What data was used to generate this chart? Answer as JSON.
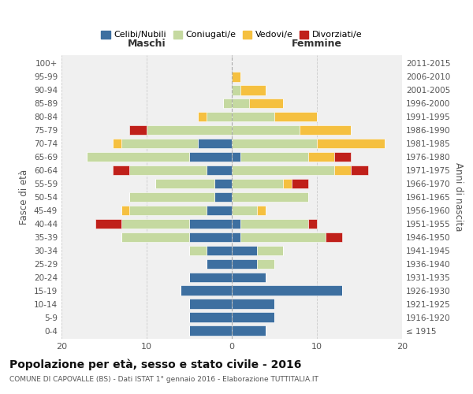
{
  "age_groups": [
    "100+",
    "95-99",
    "90-94",
    "85-89",
    "80-84",
    "75-79",
    "70-74",
    "65-69",
    "60-64",
    "55-59",
    "50-54",
    "45-49",
    "40-44",
    "35-39",
    "30-34",
    "25-29",
    "20-24",
    "15-19",
    "10-14",
    "5-9",
    "0-4"
  ],
  "birth_years": [
    "≤ 1915",
    "1916-1920",
    "1921-1925",
    "1926-1930",
    "1931-1935",
    "1936-1940",
    "1941-1945",
    "1946-1950",
    "1951-1955",
    "1956-1960",
    "1961-1965",
    "1966-1970",
    "1971-1975",
    "1976-1980",
    "1981-1985",
    "1986-1990",
    "1991-1995",
    "1996-2000",
    "2001-2005",
    "2006-2010",
    "2011-2015"
  ],
  "male": {
    "celibi": [
      0,
      0,
      0,
      0,
      0,
      0,
      4,
      5,
      3,
      2,
      2,
      3,
      5,
      5,
      3,
      3,
      5,
      6,
      5,
      5,
      5
    ],
    "coniugati": [
      0,
      0,
      0,
      1,
      3,
      10,
      9,
      12,
      9,
      7,
      10,
      9,
      8,
      8,
      2,
      0,
      0,
      0,
      0,
      0,
      0
    ],
    "vedovi": [
      0,
      0,
      0,
      0,
      1,
      0,
      1,
      0,
      0,
      0,
      0,
      1,
      0,
      0,
      0,
      0,
      0,
      0,
      0,
      0,
      0
    ],
    "divorziati": [
      0,
      0,
      0,
      0,
      0,
      2,
      0,
      0,
      2,
      0,
      0,
      0,
      3,
      0,
      0,
      0,
      0,
      0,
      0,
      0,
      0
    ]
  },
  "female": {
    "nubili": [
      0,
      0,
      0,
      0,
      0,
      0,
      0,
      1,
      0,
      0,
      0,
      0,
      1,
      1,
      3,
      3,
      4,
      13,
      5,
      5,
      4
    ],
    "coniugate": [
      0,
      0,
      1,
      2,
      5,
      8,
      10,
      8,
      12,
      6,
      9,
      3,
      8,
      10,
      3,
      2,
      0,
      0,
      0,
      0,
      0
    ],
    "vedove": [
      0,
      1,
      3,
      4,
      5,
      6,
      8,
      3,
      2,
      1,
      0,
      1,
      0,
      0,
      0,
      0,
      0,
      0,
      0,
      0,
      0
    ],
    "divorziate": [
      0,
      0,
      0,
      0,
      0,
      0,
      0,
      2,
      2,
      2,
      0,
      0,
      1,
      2,
      0,
      0,
      0,
      0,
      0,
      0,
      0
    ]
  },
  "color_celibi": "#3d6fa0",
  "color_coniugati": "#c5d9a0",
  "color_vedovi": "#f5c040",
  "color_divorziati": "#c0201a",
  "bg_color": "#f0f0f0",
  "xmin": -20,
  "xmax": 20,
  "title": "Popolazione per età, sesso e stato civile - 2016",
  "subtitle": "COMUNE DI CAPOVALLE (BS) - Dati ISTAT 1° gennaio 2016 - Elaborazione TUTTITALIA.IT",
  "ylabel_left": "Fasce di età",
  "ylabel_right": "Anni di nascita"
}
